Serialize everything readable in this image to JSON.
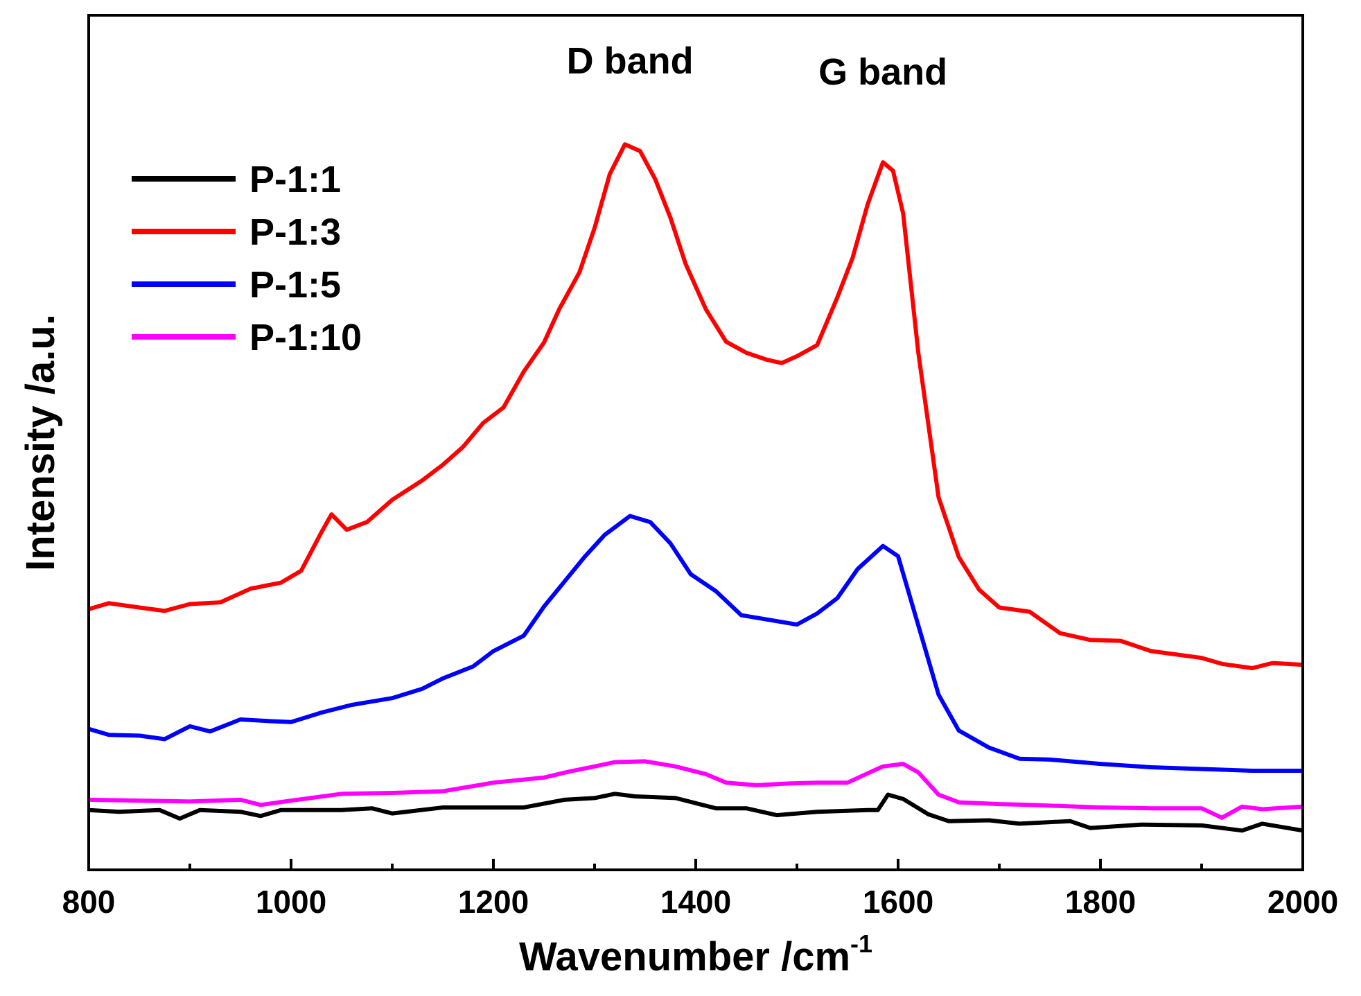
{
  "chart_data": {
    "type": "line",
    "xlabel": "Wavenumber /cm",
    "xlabel_superscript": "-1",
    "ylabel": "Intensity /a.u.",
    "xlim": [
      800,
      2000
    ],
    "ylim": [
      0,
      100
    ],
    "x_ticks": [
      800,
      1000,
      1200,
      1400,
      1600,
      1800,
      2000
    ],
    "y_ticks_shown": false,
    "grid": false,
    "legend_position": "top-left",
    "annotations": [
      {
        "text": "D band",
        "x": 1335
      },
      {
        "text": "G band",
        "x": 1585
      }
    ],
    "series": [
      {
        "name": "P-1:1",
        "color": "#000000",
        "points": [
          [
            800,
            7
          ],
          [
            830,
            6.8
          ],
          [
            870,
            7
          ],
          [
            890,
            6
          ],
          [
            910,
            7
          ],
          [
            950,
            6.8
          ],
          [
            970,
            6.3
          ],
          [
            990,
            7
          ],
          [
            1050,
            7
          ],
          [
            1080,
            7.2
          ],
          [
            1100,
            6.6
          ],
          [
            1150,
            7.3
          ],
          [
            1200,
            7.3
          ],
          [
            1230,
            7.3
          ],
          [
            1270,
            8.2
          ],
          [
            1300,
            8.4
          ],
          [
            1320,
            8.9
          ],
          [
            1340,
            8.6
          ],
          [
            1380,
            8.4
          ],
          [
            1420,
            7.2
          ],
          [
            1450,
            7.2
          ],
          [
            1480,
            6.4
          ],
          [
            1520,
            6.8
          ],
          [
            1570,
            7
          ],
          [
            1580,
            7
          ],
          [
            1590,
            8.8
          ],
          [
            1605,
            8.3
          ],
          [
            1630,
            6.5
          ],
          [
            1650,
            5.7
          ],
          [
            1690,
            5.8
          ],
          [
            1720,
            5.4
          ],
          [
            1770,
            5.7
          ],
          [
            1790,
            4.9
          ],
          [
            1840,
            5.3
          ],
          [
            1900,
            5.2
          ],
          [
            1940,
            4.6
          ],
          [
            1960,
            5.4
          ],
          [
            2000,
            4.6
          ]
        ]
      },
      {
        "name": "P-1:3",
        "color": "#ff0000",
        "points": [
          [
            800,
            30.5
          ],
          [
            820,
            31.2
          ],
          [
            850,
            30.7
          ],
          [
            875,
            30.3
          ],
          [
            900,
            31.1
          ],
          [
            930,
            31.3
          ],
          [
            960,
            32.9
          ],
          [
            990,
            33.6
          ],
          [
            1010,
            35
          ],
          [
            1030,
            39.5
          ],
          [
            1040,
            41.6
          ],
          [
            1055,
            39.8
          ],
          [
            1075,
            40.7
          ],
          [
            1100,
            43.3
          ],
          [
            1130,
            45.6
          ],
          [
            1150,
            47.4
          ],
          [
            1170,
            49.5
          ],
          [
            1190,
            52.3
          ],
          [
            1210,
            54.1
          ],
          [
            1230,
            58.3
          ],
          [
            1250,
            61.7
          ],
          [
            1265,
            65.6
          ],
          [
            1285,
            69.9
          ],
          [
            1300,
            75.1
          ],
          [
            1315,
            81.4
          ],
          [
            1330,
            84.9
          ],
          [
            1345,
            84.1
          ],
          [
            1360,
            80.8
          ],
          [
            1375,
            76.3
          ],
          [
            1390,
            70.9
          ],
          [
            1410,
            65.6
          ],
          [
            1430,
            61.8
          ],
          [
            1450,
            60.5
          ],
          [
            1470,
            59.7
          ],
          [
            1485,
            59.3
          ],
          [
            1500,
            60.1
          ],
          [
            1520,
            61.4
          ],
          [
            1540,
            67
          ],
          [
            1555,
            71.6
          ],
          [
            1570,
            77.9
          ],
          [
            1585,
            82.8
          ],
          [
            1595,
            81.8
          ],
          [
            1605,
            76.8
          ],
          [
            1620,
            60.5
          ],
          [
            1640,
            43.6
          ],
          [
            1660,
            36.6
          ],
          [
            1680,
            32.8
          ],
          [
            1700,
            30.7
          ],
          [
            1730,
            30.2
          ],
          [
            1760,
            27.7
          ],
          [
            1790,
            26.9
          ],
          [
            1820,
            26.8
          ],
          [
            1850,
            25.6
          ],
          [
            1900,
            24.8
          ],
          [
            1920,
            24.1
          ],
          [
            1950,
            23.6
          ],
          [
            1970,
            24.2
          ],
          [
            2000,
            24
          ]
        ]
      },
      {
        "name": "P-1:5",
        "color": "#0000ff",
        "points": [
          [
            800,
            16.5
          ],
          [
            820,
            15.8
          ],
          [
            850,
            15.7
          ],
          [
            875,
            15.3
          ],
          [
            900,
            16.8
          ],
          [
            920,
            16.2
          ],
          [
            950,
            17.6
          ],
          [
            980,
            17.4
          ],
          [
            1000,
            17.3
          ],
          [
            1030,
            18.4
          ],
          [
            1060,
            19.3
          ],
          [
            1100,
            20.1
          ],
          [
            1130,
            21.2
          ],
          [
            1150,
            22.4
          ],
          [
            1180,
            23.8
          ],
          [
            1200,
            25.6
          ],
          [
            1230,
            27.4
          ],
          [
            1250,
            30.8
          ],
          [
            1270,
            33.7
          ],
          [
            1290,
            36.6
          ],
          [
            1310,
            39.2
          ],
          [
            1335,
            41.4
          ],
          [
            1355,
            40.7
          ],
          [
            1375,
            38.2
          ],
          [
            1395,
            34.6
          ],
          [
            1420,
            32.6
          ],
          [
            1445,
            29.8
          ],
          [
            1470,
            29.3
          ],
          [
            1500,
            28.7
          ],
          [
            1520,
            30
          ],
          [
            1540,
            31.8
          ],
          [
            1560,
            35.2
          ],
          [
            1585,
            37.9
          ],
          [
            1600,
            36.7
          ],
          [
            1620,
            28.6
          ],
          [
            1640,
            20.5
          ],
          [
            1660,
            16.3
          ],
          [
            1690,
            14.3
          ],
          [
            1720,
            13
          ],
          [
            1750,
            12.9
          ],
          [
            1800,
            12.4
          ],
          [
            1850,
            12
          ],
          [
            1900,
            11.8
          ],
          [
            1950,
            11.6
          ],
          [
            2000,
            11.6
          ]
        ]
      },
      {
        "name": "P-1:10",
        "color": "#ff00ff",
        "points": [
          [
            800,
            8.2
          ],
          [
            850,
            8.1
          ],
          [
            900,
            8
          ],
          [
            950,
            8.2
          ],
          [
            970,
            7.6
          ],
          [
            1000,
            8.1
          ],
          [
            1050,
            8.9
          ],
          [
            1100,
            9
          ],
          [
            1150,
            9.2
          ],
          [
            1200,
            10.2
          ],
          [
            1250,
            10.8
          ],
          [
            1275,
            11.5
          ],
          [
            1300,
            12.1
          ],
          [
            1320,
            12.6
          ],
          [
            1350,
            12.7
          ],
          [
            1380,
            12.1
          ],
          [
            1410,
            11.2
          ],
          [
            1430,
            10.2
          ],
          [
            1460,
            9.9
          ],
          [
            1490,
            10.1
          ],
          [
            1520,
            10.2
          ],
          [
            1550,
            10.2
          ],
          [
            1570,
            11.3
          ],
          [
            1585,
            12.1
          ],
          [
            1605,
            12.4
          ],
          [
            1620,
            11.4
          ],
          [
            1640,
            8.8
          ],
          [
            1660,
            7.9
          ],
          [
            1700,
            7.7
          ],
          [
            1730,
            7.6
          ],
          [
            1800,
            7.3
          ],
          [
            1850,
            7.2
          ],
          [
            1900,
            7.2
          ],
          [
            1920,
            6.1
          ],
          [
            1940,
            7.4
          ],
          [
            1960,
            7.1
          ],
          [
            2000,
            7.4
          ]
        ]
      }
    ]
  }
}
